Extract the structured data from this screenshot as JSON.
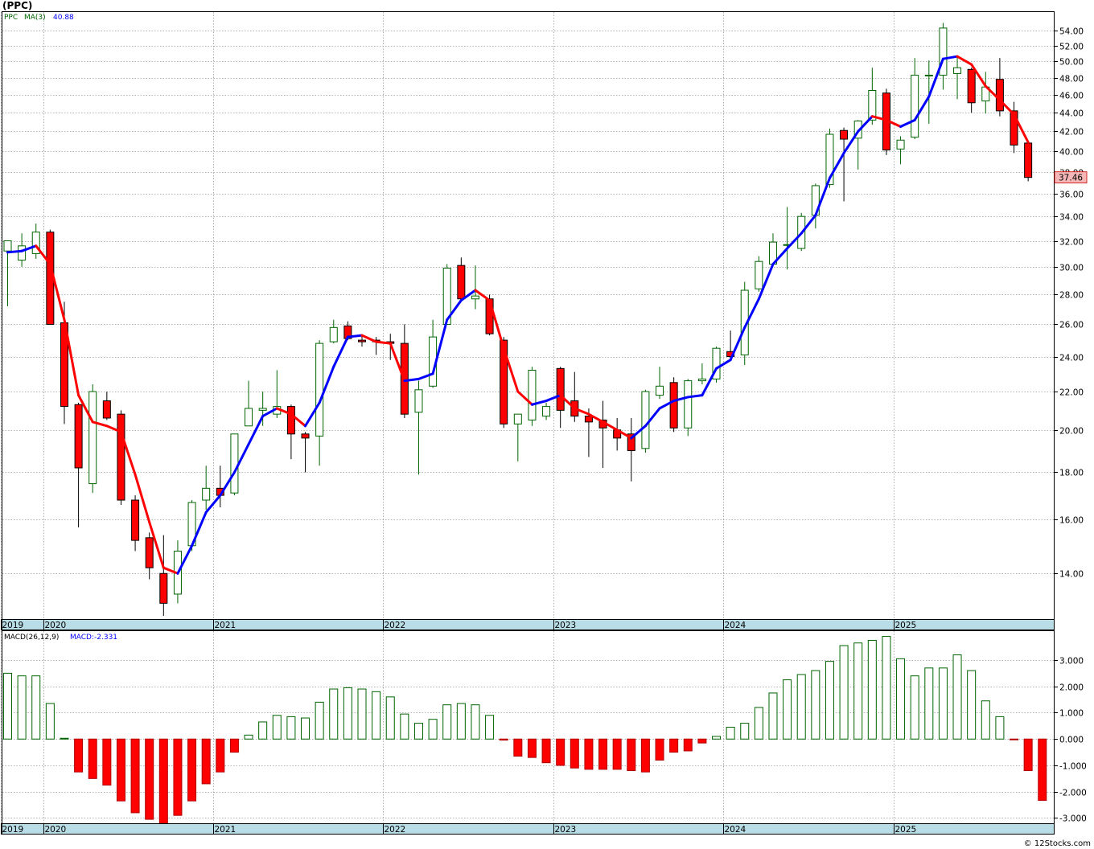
{
  "title": "(PPC)",
  "watermark": "© 12Stocks.com",
  "colors": {
    "up": "#006400",
    "down": "#ff0000",
    "ma_up": "#0000ff",
    "ma_down": "#ff0000",
    "axis_band": "#b8dde6",
    "price_tag": "#f4b6b6"
  },
  "chart_data": [
    {
      "type": "candlestick",
      "ticker": "PPC",
      "interval": "monthly",
      "legend": {
        "symbol": "PPC",
        "ma_label": "MA(3)",
        "ma_value": "40.88"
      },
      "last_price": "37.46",
      "y_scale": "log",
      "ylim": [
        12.5,
        56.5
      ],
      "y_ticks": [
        "14.00",
        "16.00",
        "18.00",
        "20.00",
        "22.00",
        "24.00",
        "26.00",
        "28.00",
        "30.00",
        "32.00",
        "34.00",
        "36.00",
        "38.00",
        "40.00",
        "42.00",
        "44.00",
        "46.00",
        "48.00",
        "50.00",
        "52.00",
        "54.00"
      ],
      "x_labels": [
        {
          "label": "2019",
          "index": 0
        },
        {
          "label": "2020",
          "index": 3
        },
        {
          "label": "2021",
          "index": 15
        },
        {
          "label": "2022",
          "index": 27
        },
        {
          "label": "2023",
          "index": 39
        },
        {
          "label": "2024",
          "index": 51
        },
        {
          "label": "2025",
          "index": 63
        }
      ],
      "grid": true,
      "candles": [
        {
          "o": 31.2,
          "h": 32.0,
          "l": 27.2,
          "c": 32.0
        },
        {
          "o": 30.5,
          "h": 32.6,
          "l": 30.0,
          "c": 31.6
        },
        {
          "o": 31.0,
          "h": 33.4,
          "l": 30.6,
          "c": 32.7
        },
        {
          "o": 32.7,
          "h": 32.9,
          "l": 26.0,
          "c": 26.0
        },
        {
          "o": 26.1,
          "h": 27.5,
          "l": 20.3,
          "c": 21.2
        },
        {
          "o": 21.3,
          "h": 21.4,
          "l": 15.7,
          "c": 18.2
        },
        {
          "o": 17.5,
          "h": 22.4,
          "l": 17.1,
          "c": 22.0
        },
        {
          "o": 21.5,
          "h": 22.0,
          "l": 20.5,
          "c": 20.6
        },
        {
          "o": 20.8,
          "h": 21.0,
          "l": 16.6,
          "c": 16.8
        },
        {
          "o": 16.8,
          "h": 17.0,
          "l": 14.8,
          "c": 15.2
        },
        {
          "o": 15.3,
          "h": 15.5,
          "l": 13.8,
          "c": 14.2
        },
        {
          "o": 14.0,
          "h": 15.4,
          "l": 12.6,
          "c": 13.0
        },
        {
          "o": 13.3,
          "h": 15.2,
          "l": 13.0,
          "c": 14.8
        },
        {
          "o": 15.0,
          "h": 16.8,
          "l": 14.8,
          "c": 16.7
        },
        {
          "o": 16.8,
          "h": 18.3,
          "l": 16.4,
          "c": 17.3
        },
        {
          "o": 17.3,
          "h": 18.3,
          "l": 16.5,
          "c": 17.0
        },
        {
          "o": 17.1,
          "h": 19.8,
          "l": 17.0,
          "c": 19.8
        },
        {
          "o": 20.2,
          "h": 22.6,
          "l": 20.2,
          "c": 21.1
        },
        {
          "o": 21.0,
          "h": 22.0,
          "l": 20.2,
          "c": 21.1
        },
        {
          "o": 20.8,
          "h": 23.2,
          "l": 20.6,
          "c": 21.2
        },
        {
          "o": 21.2,
          "h": 21.3,
          "l": 18.6,
          "c": 19.8
        },
        {
          "o": 19.8,
          "h": 19.9,
          "l": 18.0,
          "c": 19.6
        },
        {
          "o": 19.7,
          "h": 25.0,
          "l": 18.3,
          "c": 24.8
        },
        {
          "o": 24.9,
          "h": 26.3,
          "l": 24.8,
          "c": 25.8
        },
        {
          "o": 25.9,
          "h": 26.2,
          "l": 25.0,
          "c": 25.1
        },
        {
          "o": 25.0,
          "h": 25.3,
          "l": 24.6,
          "c": 24.9
        },
        {
          "o": 25.0,
          "h": 25.2,
          "l": 24.1,
          "c": 24.9
        },
        {
          "o": 24.9,
          "h": 25.4,
          "l": 23.8,
          "c": 24.8
        },
        {
          "o": 24.8,
          "h": 26.0,
          "l": 20.6,
          "c": 20.8
        },
        {
          "o": 20.9,
          "h": 22.6,
          "l": 17.9,
          "c": 22.1
        },
        {
          "o": 22.3,
          "h": 26.3,
          "l": 22.2,
          "c": 25.2
        },
        {
          "o": 26.0,
          "h": 30.2,
          "l": 26.0,
          "c": 29.9
        },
        {
          "o": 30.1,
          "h": 30.7,
          "l": 27.5,
          "c": 27.7
        },
        {
          "o": 27.7,
          "h": 30.1,
          "l": 27.0,
          "c": 27.9
        },
        {
          "o": 27.7,
          "h": 28.0,
          "l": 25.3,
          "c": 25.4
        },
        {
          "o": 25.0,
          "h": 25.2,
          "l": 20.1,
          "c": 20.3
        },
        {
          "o": 20.3,
          "h": 20.8,
          "l": 18.5,
          "c": 20.8
        },
        {
          "o": 20.5,
          "h": 23.4,
          "l": 20.2,
          "c": 23.2
        },
        {
          "o": 20.7,
          "h": 21.4,
          "l": 20.5,
          "c": 21.2
        },
        {
          "o": 23.3,
          "h": 23.4,
          "l": 20.1,
          "c": 21.0
        },
        {
          "o": 21.5,
          "h": 23.1,
          "l": 20.4,
          "c": 20.7
        },
        {
          "o": 20.7,
          "h": 21.1,
          "l": 18.7,
          "c": 20.4
        },
        {
          "o": 20.5,
          "h": 21.5,
          "l": 18.2,
          "c": 20.1
        },
        {
          "o": 20.0,
          "h": 20.6,
          "l": 19.0,
          "c": 19.6
        },
        {
          "o": 19.8,
          "h": 20.6,
          "l": 17.6,
          "c": 19.0
        },
        {
          "o": 19.1,
          "h": 22.1,
          "l": 18.9,
          "c": 22.0
        },
        {
          "o": 21.8,
          "h": 23.4,
          "l": 21.6,
          "c": 22.3
        },
        {
          "o": 22.5,
          "h": 22.8,
          "l": 19.9,
          "c": 20.1
        },
        {
          "o": 20.1,
          "h": 22.7,
          "l": 19.7,
          "c": 22.6
        },
        {
          "o": 22.6,
          "h": 23.6,
          "l": 22.4,
          "c": 22.7
        },
        {
          "o": 22.7,
          "h": 24.6,
          "l": 22.5,
          "c": 24.5
        },
        {
          "o": 24.3,
          "h": 25.6,
          "l": 23.8,
          "c": 24.0
        },
        {
          "o": 24.1,
          "h": 28.9,
          "l": 23.5,
          "c": 28.3
        },
        {
          "o": 28.4,
          "h": 30.8,
          "l": 28.2,
          "c": 30.4
        },
        {
          "o": 30.2,
          "h": 32.6,
          "l": 30.0,
          "c": 31.9
        },
        {
          "o": 31.7,
          "h": 34.8,
          "l": 29.8,
          "c": 31.7
        },
        {
          "o": 31.4,
          "h": 34.3,
          "l": 31.2,
          "c": 34.0
        },
        {
          "o": 34.1,
          "h": 36.9,
          "l": 33.0,
          "c": 36.7
        },
        {
          "o": 36.8,
          "h": 42.3,
          "l": 36.5,
          "c": 41.7
        },
        {
          "o": 42.1,
          "h": 42.4,
          "l": 35.3,
          "c": 41.2
        },
        {
          "o": 41.3,
          "h": 43.2,
          "l": 38.2,
          "c": 43.1
        },
        {
          "o": 43.2,
          "h": 49.2,
          "l": 42.7,
          "c": 46.5
        },
        {
          "o": 46.2,
          "h": 46.7,
          "l": 39.6,
          "c": 40.1
        },
        {
          "o": 40.2,
          "h": 41.5,
          "l": 38.7,
          "c": 41.1
        },
        {
          "o": 41.4,
          "h": 50.4,
          "l": 41.2,
          "c": 48.3
        },
        {
          "o": 48.2,
          "h": 50.1,
          "l": 42.8,
          "c": 48.3
        },
        {
          "o": 48.3,
          "h": 55.0,
          "l": 46.6,
          "c": 54.3
        },
        {
          "o": 48.5,
          "h": 50.5,
          "l": 45.5,
          "c": 49.2
        },
        {
          "o": 49.0,
          "h": 49.2,
          "l": 44.0,
          "c": 45.1
        },
        {
          "o": 45.3,
          "h": 48.7,
          "l": 43.9,
          "c": 46.9
        },
        {
          "o": 47.8,
          "h": 50.4,
          "l": 43.6,
          "c": 44.2
        },
        {
          "o": 44.2,
          "h": 45.2,
          "l": 39.8,
          "c": 40.6
        },
        {
          "o": 40.8,
          "h": 41.0,
          "l": 37.1,
          "c": 37.46
        }
      ],
      "ma3": [
        31.1,
        31.2,
        31.6,
        30.2,
        26.3,
        21.8,
        20.4,
        20.2,
        19.9,
        17.9,
        15.9,
        14.2,
        14.0,
        15.0,
        16.3,
        17.0,
        18.0,
        19.3,
        20.7,
        21.1,
        20.8,
        20.2,
        21.4,
        23.4,
        25.2,
        25.3,
        24.9,
        24.8,
        22.6,
        22.7,
        23.0,
        26.3,
        27.6,
        28.3,
        27.6,
        24.5,
        22.0,
        21.3,
        21.5,
        21.8,
        21.1,
        20.8,
        20.4,
        20.0,
        19.6,
        20.2,
        21.1,
        21.5,
        21.7,
        21.8,
        23.3,
        23.8,
        25.8,
        27.7,
        30.2,
        31.4,
        32.6,
        34.1,
        37.4,
        39.8,
        42.0,
        43.6,
        43.2,
        42.5,
        43.2,
        45.8,
        50.3,
        50.6,
        49.6,
        47.0,
        45.4,
        43.8,
        40.88
      ]
    },
    {
      "type": "bar",
      "indicator": "MACD",
      "legend": {
        "label": "MACD(26,12,9)",
        "value_label": "MACD:-2.331"
      },
      "ylim": [
        -3.2,
        4.1
      ],
      "y_ticks": [
        "-3.000",
        "-2.000",
        "-1.000",
        "0.000",
        "1.000",
        "2.000",
        "3.000"
      ],
      "x_labels": [
        {
          "label": "2019",
          "index": 0
        },
        {
          "label": "2020",
          "index": 3
        },
        {
          "label": "2021",
          "index": 15
        },
        {
          "label": "2022",
          "index": 27
        },
        {
          "label": "2023",
          "index": 39
        },
        {
          "label": "2024",
          "index": 51
        },
        {
          "label": "2025",
          "index": 63
        }
      ],
      "values": [
        2.5,
        2.4,
        2.4,
        1.35,
        0.03,
        -1.25,
        -1.5,
        -1.75,
        -2.35,
        -2.8,
        -3.05,
        -3.2,
        -2.9,
        -2.35,
        -1.7,
        -1.25,
        -0.5,
        0.15,
        0.65,
        0.9,
        0.85,
        0.8,
        1.4,
        1.9,
        1.95,
        1.9,
        1.8,
        1.6,
        0.95,
        0.6,
        0.75,
        1.3,
        1.35,
        1.3,
        0.9,
        -0.04,
        -0.65,
        -0.7,
        -0.9,
        -1.0,
        -1.1,
        -1.15,
        -1.15,
        -1.15,
        -1.2,
        -1.25,
        -0.8,
        -0.5,
        -0.45,
        -0.15,
        0.1,
        0.45,
        0.6,
        1.2,
        1.75,
        2.25,
        2.45,
        2.6,
        2.95,
        3.55,
        3.65,
        3.75,
        3.9,
        3.05,
        2.4,
        2.7,
        2.7,
        3.2,
        2.6,
        1.45,
        0.85,
        -0.02,
        -1.2,
        -2.331
      ]
    }
  ]
}
